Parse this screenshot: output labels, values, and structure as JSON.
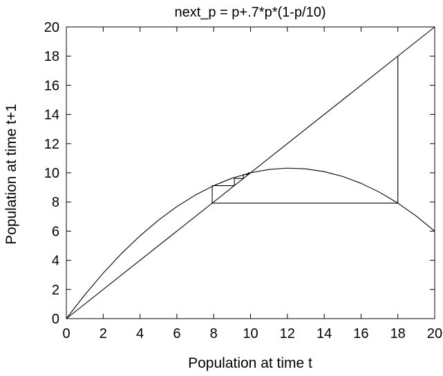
{
  "chart_data": {
    "type": "line",
    "title": "next_p = p+.7*p*(1-p/10)",
    "xlabel": "Population at time t",
    "ylabel": "Population at time t+1",
    "xlim": [
      0,
      20
    ],
    "ylim": [
      0,
      20
    ],
    "xticks": [
      0,
      2,
      4,
      6,
      8,
      10,
      12,
      14,
      16,
      18,
      20
    ],
    "yticks": [
      0,
      2,
      4,
      6,
      8,
      10,
      12,
      14,
      16,
      18,
      20
    ],
    "grid": false,
    "legend": "none",
    "series": [
      {
        "x": [
          0,
          1,
          2,
          3,
          4,
          5,
          6,
          7,
          8,
          9,
          10,
          11,
          12,
          13,
          14,
          15,
          16,
          17,
          18,
          19,
          20
        ],
        "y": [
          0,
          1.63,
          3.12,
          4.47,
          5.68,
          6.75,
          7.68,
          8.47,
          9.12,
          9.63,
          10.0,
          10.23,
          10.32,
          10.27,
          10.08,
          9.75,
          9.28,
          8.67,
          7.92,
          7.03,
          6.0
        ]
      },
      {
        "x": [
          0,
          20
        ],
        "y": [
          0,
          20
        ]
      },
      {
        "x": [
          18,
          18,
          7.92,
          7.92,
          9.12,
          9.12,
          9.61,
          9.61,
          9.88,
          9.88,
          10.0
        ],
        "y": [
          18,
          7.92,
          7.92,
          9.12,
          9.12,
          9.61,
          9.61,
          9.88,
          9.88,
          10.0,
          10.0
        ]
      }
    ]
  }
}
